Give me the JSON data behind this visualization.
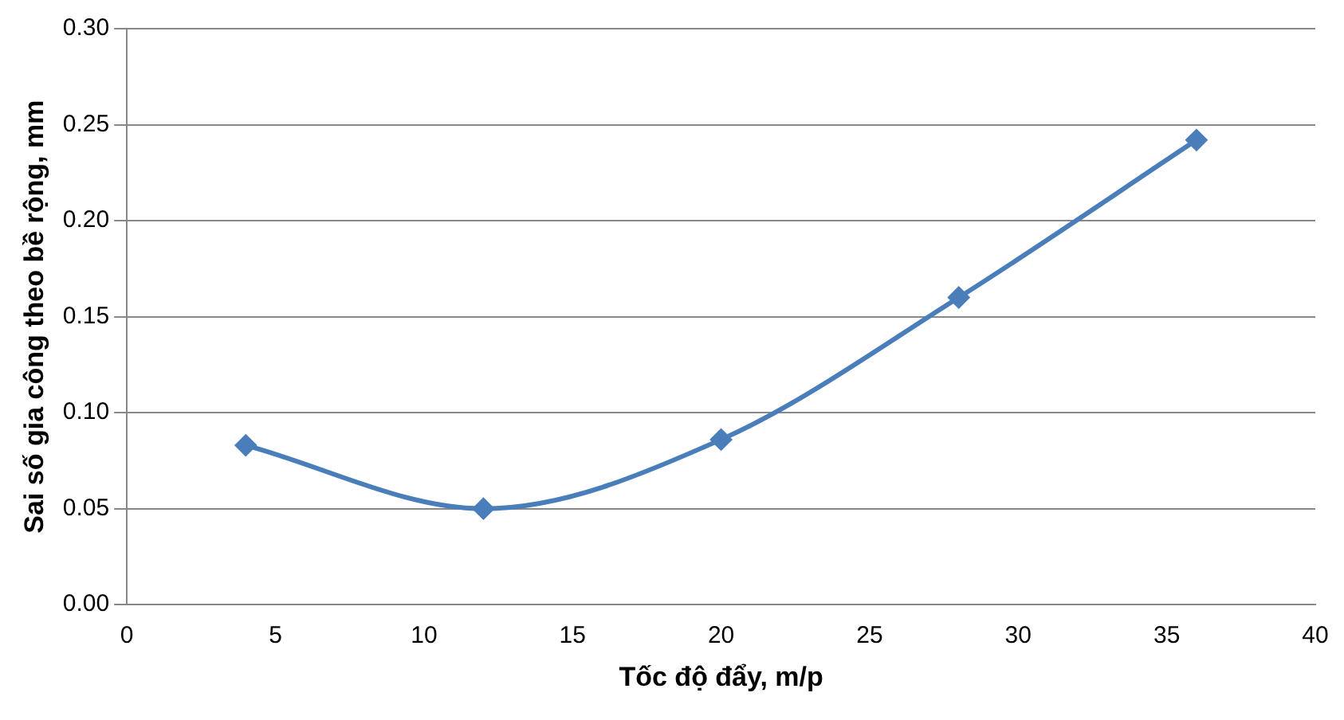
{
  "chart_data": {
    "type": "line",
    "xlabel": "Tốc độ đẩy, m/p",
    "ylabel": "Sai số gia công theo bề rộng, mm",
    "x": [
      4,
      12,
      20,
      28,
      36
    ],
    "series": [
      {
        "color": "#4a7ebb",
        "values": [
          0.083,
          0.05,
          0.086,
          0.16,
          0.242
        ]
      }
    ],
    "xlim": [
      0,
      40
    ],
    "xticks": [
      0,
      5,
      10,
      15,
      20,
      25,
      30,
      35,
      40
    ],
    "ylim": [
      0,
      0.3
    ],
    "yticks": [
      {
        "value": 0,
        "label": "0.00"
      },
      {
        "value": 0.05,
        "label": "0.05"
      },
      {
        "value": 0.1,
        "label": "0.10"
      },
      {
        "value": 0.15,
        "label": "0.15"
      },
      {
        "value": 0.2,
        "label": "0.20"
      },
      {
        "value": 0.25,
        "label": "0.25"
      },
      {
        "value": 0.3,
        "label": "0.30"
      }
    ],
    "grid": "y",
    "legend": false,
    "marker": "diamond",
    "line_style": "solid"
  }
}
